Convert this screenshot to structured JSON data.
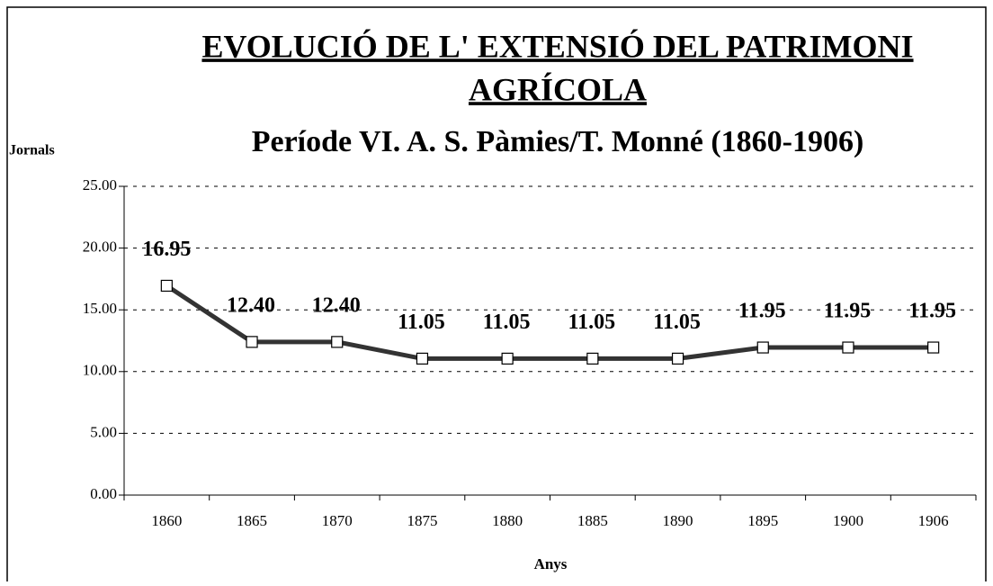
{
  "chart_data": {
    "type": "line",
    "title": [
      "EVOLUCIÓ DE L' EXTENSIÓ DEL PATRIMONI",
      "AGRÍCOLA"
    ],
    "subtitle": "Període VI. A. S. Pàmies/T. Monné (1860-1906)",
    "y_label": "Jornals",
    "x_label": "Anys",
    "categories": [
      "1860",
      "1865",
      "1870",
      "1875",
      "1880",
      "1885",
      "1890",
      "1895",
      "1900",
      "1906"
    ],
    "values": [
      16.95,
      12.4,
      12.4,
      11.05,
      11.05,
      11.05,
      11.05,
      11.95,
      11.95,
      11.95
    ],
    "value_labels": [
      "16.95",
      "12.40",
      "12.40",
      "11.05",
      "11.05",
      "11.05",
      "11.05",
      "11.95",
      "11.95",
      "11.95"
    ],
    "color": "#333333",
    "ylim": [
      0,
      25
    ],
    "yticks": [
      {
        "value": 0,
        "label": "0.00"
      },
      {
        "value": 5,
        "label": "5.00"
      },
      {
        "value": 10,
        "label": "10.00"
      },
      {
        "value": 15,
        "label": "15.00"
      },
      {
        "value": 20,
        "label": "20.00"
      },
      {
        "value": 25,
        "label": "25.00"
      }
    ],
    "grid": true
  }
}
